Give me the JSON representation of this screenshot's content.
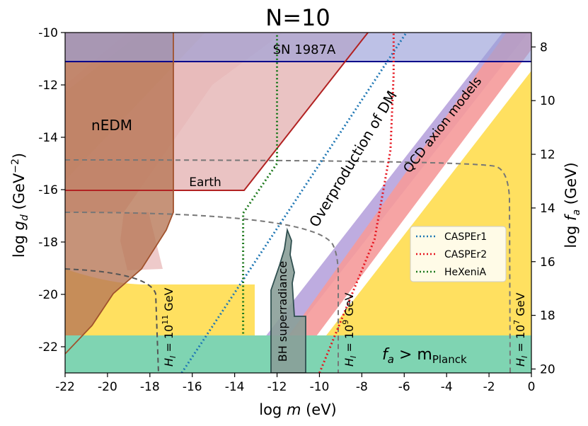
{
  "chart_data": {
    "type": "line",
    "title": "N=10",
    "xlabel": "log m (eV)",
    "ylabel_left": "log g_d (GeV^-2)",
    "ylabel_right": "log f_a (GeV)",
    "xlim": [
      -22,
      0
    ],
    "ylim": [
      -23,
      -10
    ],
    "xticks": [
      "-22",
      "-20",
      "-18",
      "-16",
      "-14",
      "-12",
      "-10",
      "-8",
      "-6",
      "-4",
      "-2",
      "0"
    ],
    "yticks": [
      "-22",
      "-20",
      "-18",
      "-16",
      "-14",
      "-12",
      "-10"
    ],
    "right_ticks": [
      "8",
      "10",
      "12",
      "14",
      "16",
      "18",
      "20"
    ],
    "right_ticks_at_gd": [
      -10.55,
      -12.6,
      -14.65,
      -16.7,
      -18.75,
      -20.8,
      -22.85
    ],
    "series": [
      {
        "name": "CASPEr1",
        "style": "dotted",
        "color": "#1f77b4",
        "x": [
          -16.5,
          -5.9
        ],
        "y": [
          -23,
          -10
        ]
      },
      {
        "name": "CASPEr2",
        "style": "dotted",
        "color": "#e6141e",
        "x": [
          -10.0,
          -7.4,
          -6.65,
          -6.5,
          -6.5
        ],
        "y": [
          -23,
          -17.9,
          -14.5,
          -11.6,
          -10
        ]
      },
      {
        "name": "HeXeniA",
        "style": "dotted",
        "color": "#1f7a1f",
        "x": [
          -13.6,
          -13.6,
          -12.0,
          -12.0
        ],
        "y": [
          -21.5,
          -16.9,
          -15.0,
          -10
        ]
      }
    ],
    "regions": [
      {
        "name": "nEDM",
        "label": "nEDM",
        "color": "#b87858"
      },
      {
        "name": "Earth",
        "label": "Earth",
        "color": "#b22222"
      },
      {
        "name": "SN 1987A",
        "label": "SN 1987A",
        "color": "#9aa0d8",
        "boundary_gd": -11.1
      },
      {
        "name": "Overproduction of DM",
        "label": "Overproduction of DM",
        "color": "#ffe060"
      },
      {
        "name": "QCD axion models",
        "label": "QCD axion models",
        "color": "#f59a9a"
      },
      {
        "name": "BH superradiance",
        "label": "BH superradiance",
        "color": "#8a9e98"
      },
      {
        "name": "fa > mPlanck",
        "label_base": "f",
        "label_sub": "a",
        "label_op": " > m",
        "label_sub2": "Planck",
        "color": "#7fd4b2",
        "upper_gd": -21.55
      }
    ],
    "dashed_curves": [
      {
        "label": "H_I = 10^11 GeV",
        "label_base": "H",
        "label_sub": "I",
        "label_eq": " = 10",
        "label_exp": "11",
        "label_unit": " GeV",
        "x_vertical": -17.6
      },
      {
        "label": "H_I = 10^9 GeV",
        "label_base": "H",
        "label_sub": "I",
        "label_eq": " = 10",
        "label_exp": "9",
        "label_unit": " GeV",
        "x_vertical": -9.1
      },
      {
        "label": "H_I = 10^7 GeV",
        "label_base": "H",
        "label_sub": "I",
        "label_eq": " = 10",
        "label_exp": "7",
        "label_unit": " GeV",
        "x_vertical": -1.0
      }
    ],
    "legend": {
      "position": "center-right",
      "entries": [
        "CASPEr1",
        "CASPEr2",
        "HeXeniA"
      ]
    }
  }
}
